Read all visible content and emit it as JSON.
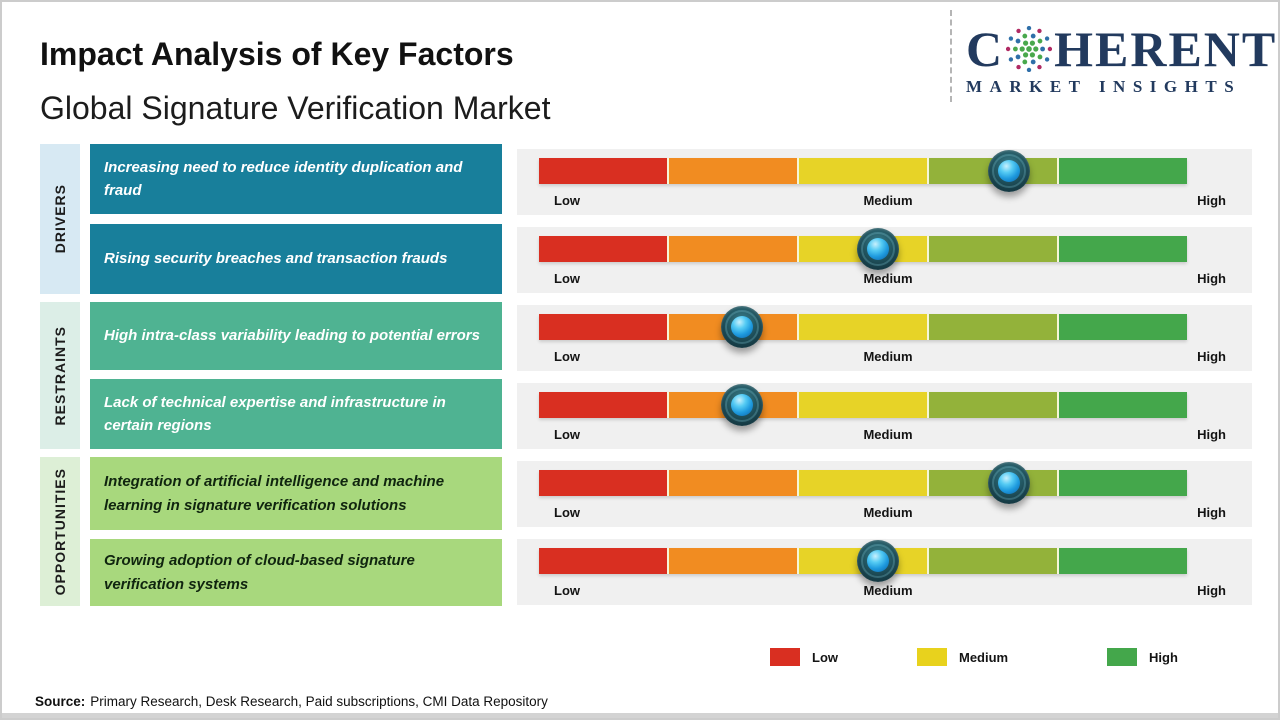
{
  "header": {
    "title": "Impact Analysis of Key Factors",
    "subtitle": "Global Signature Verification Market"
  },
  "logo": {
    "brand_first_letter": "C",
    "brand_rest": "HERENT",
    "tagline": "MARKET INSIGHTS",
    "brand_color": "#223a5e"
  },
  "groups": [
    {
      "label": "DRIVERS",
      "bg": "#d7e9f3"
    },
    {
      "label": "RESTRAINTS",
      "bg": "#dceee7"
    },
    {
      "label": "OPPORTUNITIES",
      "bg": "#ddefd6"
    }
  ],
  "rows": [
    {
      "group": "Drivers",
      "text": "Increasing need to reduce identity duplication and fraud",
      "box_bg": "#187f9b",
      "text_color": "#ffffff",
      "marker_pct": 72.5,
      "impact_level": "Medium-High"
    },
    {
      "group": "Drivers",
      "text": "Rising security breaches and transaction frauds",
      "box_bg": "#187f9b",
      "text_color": "#ffffff",
      "marker_pct": 52.3,
      "impact_level": "Medium"
    },
    {
      "group": "Restraints",
      "text": "High intra-class variability leading to potential errors",
      "box_bg": "#4fb392",
      "text_color": "#ffffff",
      "marker_pct": 31.3,
      "impact_level": "Low-Medium"
    },
    {
      "group": "Restraints",
      "text": "Lack of technical expertise and infrastructure in certain regions",
      "box_bg": "#4fb392",
      "text_color": "#ffffff",
      "marker_pct": 31.3,
      "impact_level": "Low-Medium"
    },
    {
      "group": "Opportunities",
      "text": "Integration of artificial intelligence and machine learning in signature verification solutions",
      "box_bg": "#a8d87d",
      "text_color": "#10250f",
      "marker_pct": 72.5,
      "impact_level": "Medium-High"
    },
    {
      "group": "Opportunities",
      "text": "Growing adoption of cloud-based signature verification systems",
      "box_bg": "#a8d87d",
      "text_color": "#10250f",
      "marker_pct": 52.3,
      "impact_level": "Medium"
    }
  ],
  "scale": {
    "low": "Low",
    "medium": "Medium",
    "high": "High"
  },
  "bar": {
    "segment_colors": [
      "#d92f21",
      "#f18c21",
      "#e7d327",
      "#93b23a",
      "#44a74b"
    ],
    "track_bg": "#f0f0f0"
  },
  "legend": {
    "items": [
      {
        "label": "Low",
        "color": "#d92f21"
      },
      {
        "label": "Medium",
        "color": "#e8d21d"
      },
      {
        "label": "High",
        "color": "#44a74b"
      }
    ]
  },
  "source": {
    "prefix": "Source:",
    "text": "Primary Research, Desk Research, Paid subscriptions, CMI Data Repository"
  },
  "chart_data": {
    "type": "bar",
    "title": "Impact Analysis of Key Factors",
    "subtitle": "Global Signature Verification Market",
    "scale_labels": [
      "Low",
      "Medium",
      "High"
    ],
    "legend": [
      "Low",
      "Medium",
      "High"
    ],
    "legend_position": "bottom-right",
    "categories": [
      "Drivers",
      "Drivers",
      "Restraints",
      "Restraints",
      "Opportunities",
      "Opportunities"
    ],
    "factors": [
      "Increasing need to reduce identity duplication and fraud",
      "Rising security breaches and transaction frauds",
      "High intra-class variability leading to potential errors",
      "Lack of technical expertise and infrastructure in certain regions",
      "Integration of artificial intelligence and machine learning in signature verification solutions",
      "Growing adoption of cloud-based signature verification systems"
    ],
    "impact_position_pct_low_to_high": [
      72.5,
      52.3,
      31.3,
      31.3,
      72.5,
      52.3
    ],
    "impact_levels": [
      "Medium-High",
      "Medium",
      "Low-Medium",
      "Low-Medium",
      "Medium-High",
      "Medium"
    ],
    "xlim": [
      "Low",
      "High"
    ]
  }
}
